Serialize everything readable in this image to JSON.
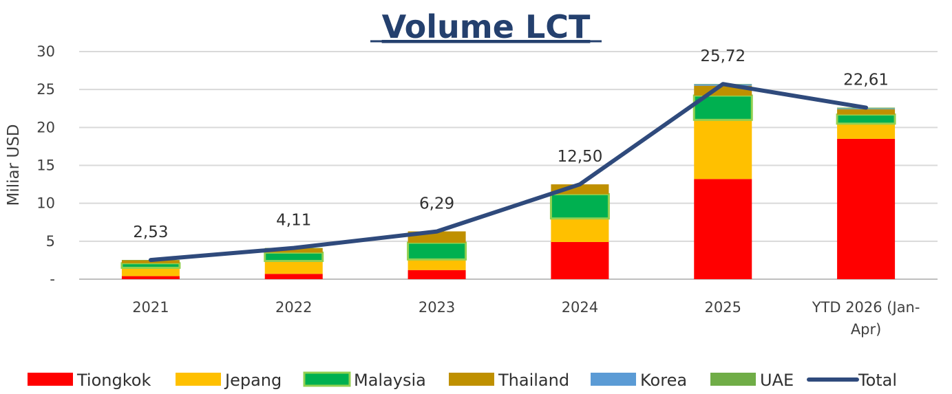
{
  "chart_data": {
    "type": "bar",
    "stacked": true,
    "title": "Volume LCT",
    "xlabel": "",
    "ylabel": "Miliar USD",
    "ylim": [
      0,
      30
    ],
    "yticks": [
      0,
      5,
      10,
      15,
      20,
      25,
      30
    ],
    "ytick_labels": [
      "-",
      "5",
      "10",
      "15",
      "20",
      "25",
      "30"
    ],
    "grid": true,
    "legend_position": "bottom",
    "categories": [
      "2021",
      "2022",
      "2023",
      "2024",
      "2025",
      "YTD 2026 (Jan-Apr)"
    ],
    "category_lines": [
      [
        "2021"
      ],
      [
        "2022"
      ],
      [
        "2023"
      ],
      [
        "2024"
      ],
      [
        "2025"
      ],
      [
        "YTD 2026 (Jan-",
        "Apr)"
      ]
    ],
    "series": [
      {
        "name": "Tiongkok",
        "color": "#ff0000",
        "values": [
          0.4,
          0.7,
          1.2,
          4.9,
          13.2,
          18.5
        ]
      },
      {
        "name": "Jepang",
        "color": "#ffc000",
        "values": [
          1.1,
          1.7,
          1.4,
          3.1,
          7.8,
          2.0
        ]
      },
      {
        "name": "Malaysia",
        "color": "#00b050",
        "values": [
          0.6,
          1.1,
          2.2,
          3.2,
          3.2,
          1.2
        ],
        "outline": "#92d050"
      },
      {
        "name": "Thailand",
        "color": "#bf9000",
        "values": [
          0.4,
          0.6,
          1.5,
          1.3,
          1.3,
          0.7
        ]
      },
      {
        "name": "Korea",
        "color": "#5b9bd5",
        "values": [
          0.0,
          0.0,
          0.0,
          0.0,
          0.2,
          0.1
        ]
      },
      {
        "name": "UAE",
        "color": "#70ad47",
        "values": [
          0.03,
          0.01,
          0.0,
          0.0,
          0.02,
          0.11
        ]
      }
    ],
    "total": {
      "name": "Total",
      "color": "#2f4a7c",
      "type": "line",
      "values": [
        2.53,
        4.11,
        6.29,
        12.5,
        25.72,
        22.61
      ],
      "labels": [
        "2,53",
        "4,11",
        "6,29",
        "12,50",
        "25,72",
        "22,61"
      ]
    }
  }
}
